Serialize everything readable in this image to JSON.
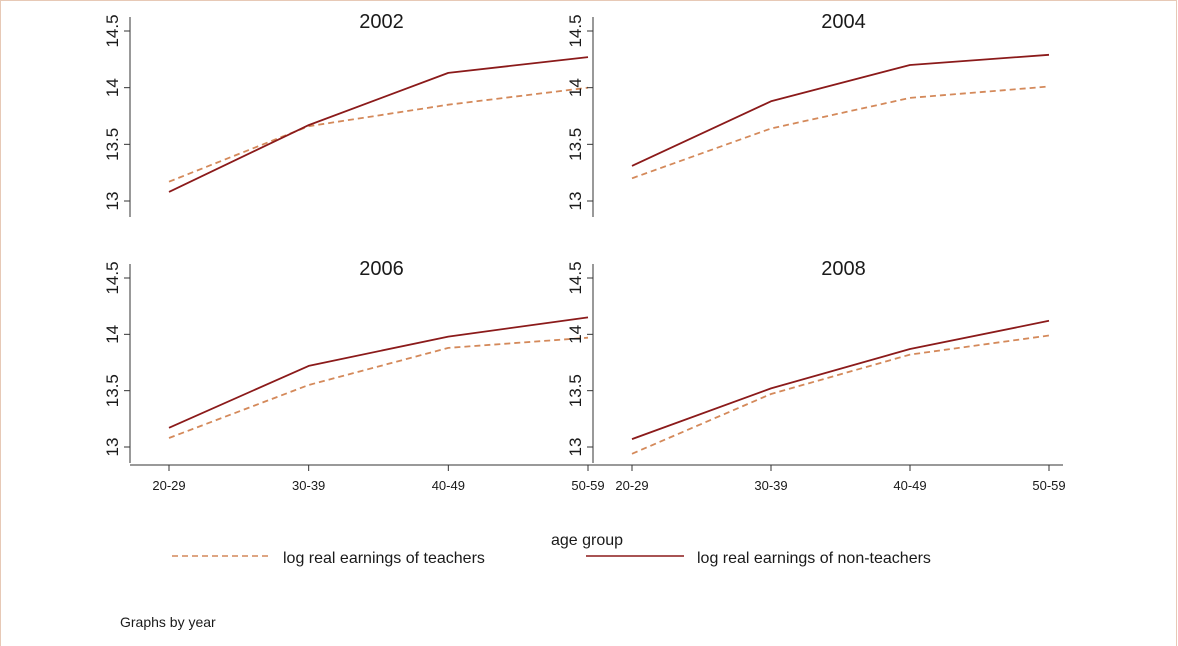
{
  "chart_data": {
    "type": "line",
    "categories": [
      "20-29",
      "30-39",
      "40-49",
      "50-59"
    ],
    "xlabel": "age group",
    "ylim": [
      13,
      14.5
    ],
    "yticks": [
      "13",
      "13.5",
      "14",
      "14.5"
    ],
    "grid": false,
    "legend_position": "bottom",
    "note": "Graphs by year",
    "legend": [
      {
        "label": "log real earnings of teachers",
        "color": "#d4895a",
        "style": "dashed"
      },
      {
        "label": "log real earnings of non-teachers",
        "color": "#8b1a1a",
        "style": "solid"
      }
    ],
    "panels": [
      {
        "title": "2002",
        "series": [
          {
            "name": "log real earnings of teachers",
            "values": [
              13.17,
              13.66,
              13.85,
              14.0
            ]
          },
          {
            "name": "log real earnings of non-teachers",
            "values": [
              13.08,
              13.67,
              14.13,
              14.27
            ]
          }
        ]
      },
      {
        "title": "2004",
        "series": [
          {
            "name": "log real earnings of teachers",
            "values": [
              13.2,
              13.64,
              13.91,
              14.01
            ]
          },
          {
            "name": "log real earnings of non-teachers",
            "values": [
              13.31,
              13.88,
              14.2,
              14.29
            ]
          }
        ]
      },
      {
        "title": "2006",
        "series": [
          {
            "name": "log real earnings of teachers",
            "values": [
              13.08,
              13.55,
              13.88,
              13.97
            ]
          },
          {
            "name": "log real earnings of non-teachers",
            "values": [
              13.17,
              13.72,
              13.98,
              14.15
            ]
          }
        ]
      },
      {
        "title": "2008",
        "series": [
          {
            "name": "log real earnings of teachers",
            "values": [
              12.94,
              13.47,
              13.82,
              13.99
            ]
          },
          {
            "name": "log real earnings of non-teachers",
            "values": [
              13.07,
              13.52,
              13.87,
              14.12
            ]
          }
        ]
      }
    ]
  }
}
